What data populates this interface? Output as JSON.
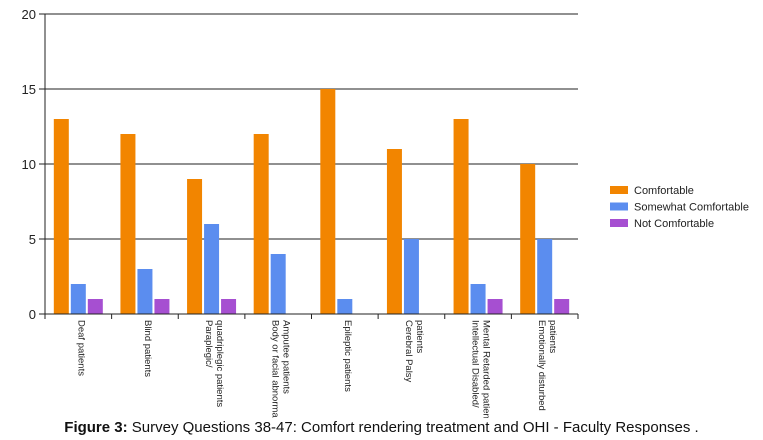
{
  "chart_data": {
    "type": "bar",
    "categories": [
      "Deaf patients",
      "Blind patients",
      "Paraplegic/quadriplegic patients",
      "Body or facial abnormal/ Amputee patients",
      "Epileptic patients",
      "Cerebral Palsy patients",
      "Intellectual Disabled/ Mental Retarded patient",
      "Emotionally disturbed patients"
    ],
    "series": [
      {
        "name": "Comfortable",
        "color": "#f28500",
        "values": [
          13,
          12,
          9,
          12,
          15,
          11,
          13,
          10
        ]
      },
      {
        "name": "Somewhat Comfortable",
        "color": "#5b8def",
        "values": [
          2,
          3,
          6,
          4,
          1,
          5,
          2,
          5
        ]
      },
      {
        "name": "Not Comfortable",
        "color": "#a64fd1",
        "values": [
          1,
          1,
          1,
          0,
          0,
          0,
          1,
          1
        ]
      }
    ],
    "ylim": [
      0,
      20
    ],
    "yticks": [
      0,
      5,
      10,
      15,
      20
    ],
    "grid": true,
    "legend_position": "right",
    "xlabel": "",
    "ylabel": ""
  },
  "caption": {
    "label": "Figure 3:",
    "text": " Survey Questions 38-47: Comfort rendering treatment and OHI - Faculty Responses ."
  }
}
